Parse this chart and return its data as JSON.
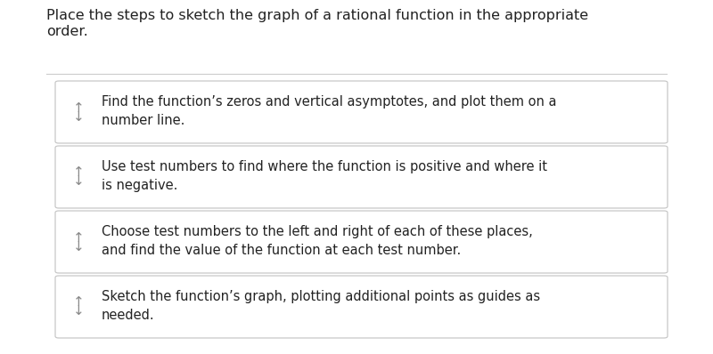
{
  "title_line1": "Place the steps to sketch the graph of a rational function in the appropriate",
  "title_line2": "order.",
  "title_fontsize": 11.5,
  "background_color": "#ffffff",
  "box_border_color": "#c8c8c8",
  "box_fill_color": "#ffffff",
  "separator_color": "#cccccc",
  "text_color": "#222222",
  "arrow_color": "#888888",
  "arrow_symbol": "↑↓",
  "steps": [
    "Find the function’s zeros and vertical asymptotes, and plot them on a\nnumber line.",
    "Use test numbers to find where the function is positive and where it\nis negative.",
    "Choose test numbers to the left and right of each of these places,\nand find the value of the function at each test number.",
    "Sketch the function’s graph, plotting additional points as guides as\nneeded."
  ],
  "step_fontsize": 10.5,
  "arrow_fontsize": 11
}
